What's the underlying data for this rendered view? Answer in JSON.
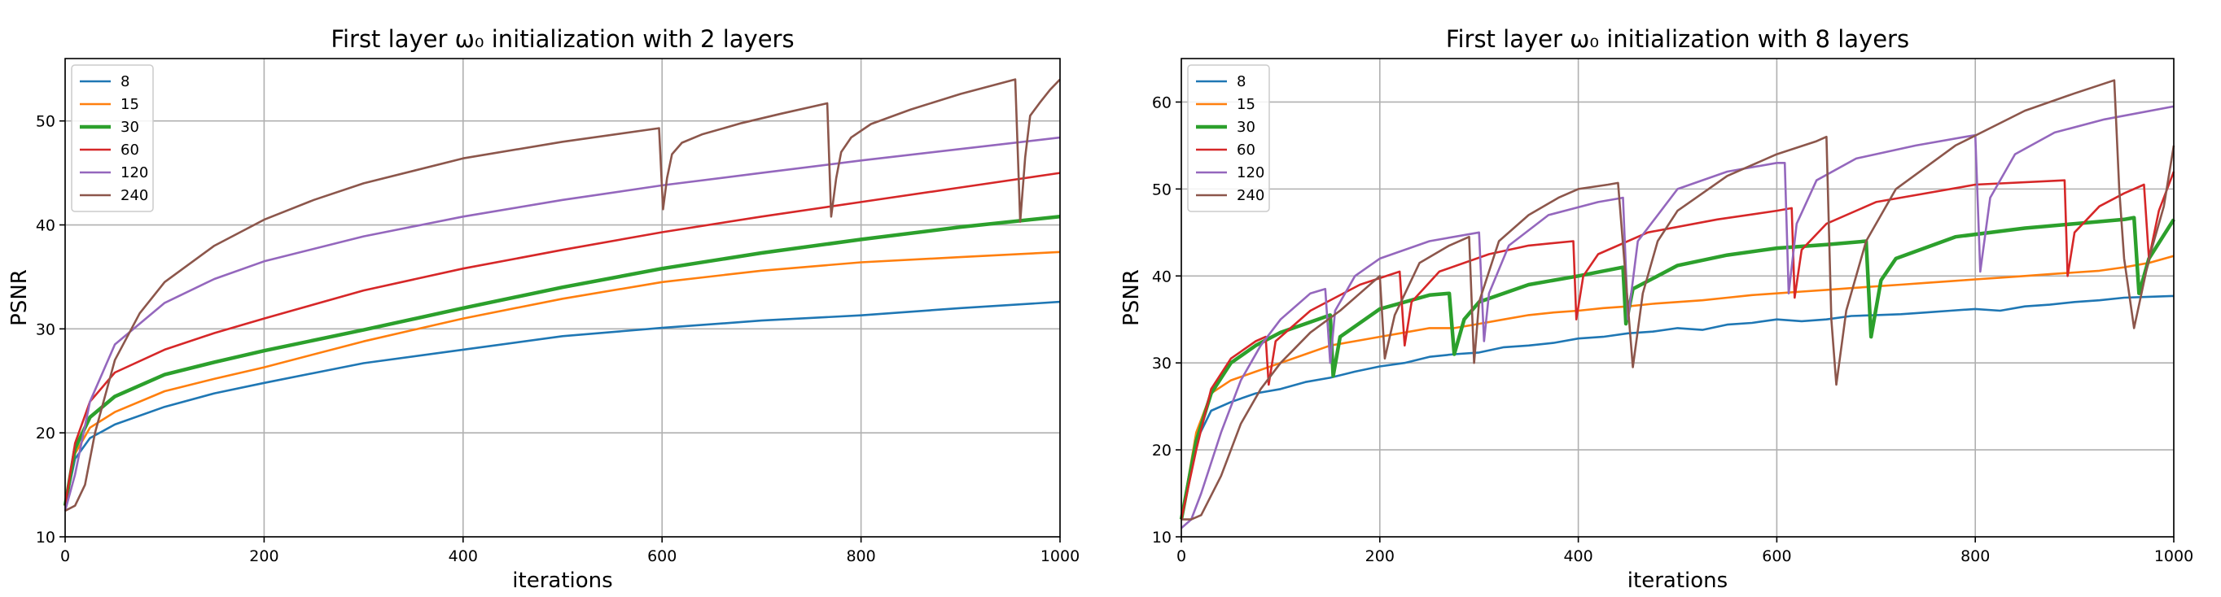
{
  "chart_data": [
    {
      "type": "line",
      "title": "First layer ω₀ initialization with 2 layers",
      "xlabel": "iterations",
      "ylabel": "PSNR",
      "xlim": [
        0,
        1000
      ],
      "ylim": [
        10,
        56
      ],
      "xticks": [
        0,
        200,
        400,
        600,
        800,
        1000
      ],
      "yticks": [
        10,
        20,
        30,
        40,
        50
      ],
      "grid": true,
      "legend": "top-left",
      "series": [
        {
          "name": "8",
          "color": "#1f77b4",
          "x": [
            0,
            10,
            25,
            50,
            100,
            150,
            200,
            300,
            400,
            500,
            600,
            700,
            800,
            900,
            1000
          ],
          "y": [
            13,
            17.5,
            19.5,
            20.8,
            22.5,
            23.8,
            24.8,
            26.7,
            28.0,
            29.3,
            30.1,
            30.8,
            31.3,
            32.0,
            32.6
          ]
        },
        {
          "name": "15",
          "color": "#ff7f0e",
          "x": [
            0,
            10,
            25,
            50,
            100,
            150,
            200,
            300,
            400,
            500,
            600,
            700,
            800,
            900,
            1000
          ],
          "y": [
            13,
            18,
            20.5,
            22.0,
            24.0,
            25.2,
            26.3,
            28.8,
            31.0,
            32.9,
            34.5,
            35.6,
            36.4,
            36.9,
            37.4
          ]
        },
        {
          "name": "30",
          "color": "#2ca02c",
          "x": [
            0,
            10,
            25,
            50,
            100,
            150,
            200,
            300,
            400,
            500,
            600,
            700,
            800,
            900,
            1000
          ],
          "y": [
            13,
            18.5,
            21.5,
            23.5,
            25.6,
            26.8,
            27.9,
            29.9,
            32.0,
            34.0,
            35.8,
            37.3,
            38.6,
            39.8,
            40.8
          ]
        },
        {
          "name": "60",
          "color": "#d62728",
          "x": [
            0,
            10,
            25,
            50,
            100,
            150,
            200,
            300,
            400,
            500,
            600,
            700,
            800,
            900,
            1000
          ],
          "y": [
            13,
            19,
            23,
            25.8,
            28.0,
            29.6,
            31.0,
            33.7,
            35.8,
            37.6,
            39.3,
            40.8,
            42.2,
            43.6,
            45.0
          ]
        },
        {
          "name": "120",
          "color": "#9467bd",
          "x": [
            0,
            10,
            25,
            50,
            100,
            150,
            200,
            300,
            400,
            500,
            600,
            700,
            800,
            900,
            1000
          ],
          "y": [
            12.5,
            16,
            23,
            28.5,
            32.5,
            34.8,
            36.5,
            38.9,
            40.8,
            42.4,
            43.8,
            45.0,
            46.2,
            47.3,
            48.4
          ]
        },
        {
          "name": "240",
          "color": "#8c564b",
          "x": [
            0,
            10,
            20,
            30,
            50,
            75,
            100,
            150,
            200,
            250,
            300,
            400,
            500,
            597,
            601,
            605,
            610,
            620,
            640,
            680,
            720,
            766,
            770,
            775,
            780,
            790,
            810,
            850,
            900,
            955,
            960,
            965,
            970,
            980,
            990,
            1000
          ],
          "y": [
            12.5,
            13,
            15,
            20,
            27,
            31.5,
            34.5,
            38.0,
            40.5,
            42.4,
            44.0,
            46.4,
            48.0,
            49.3,
            41.5,
            44.5,
            46.8,
            47.9,
            48.7,
            49.8,
            50.7,
            51.7,
            40.8,
            44.5,
            47.0,
            48.4,
            49.7,
            51.1,
            52.6,
            54.0,
            40.3,
            46.5,
            50.5,
            51.8,
            53.0,
            54.0
          ]
        }
      ]
    },
    {
      "type": "line",
      "title": "First layer ω₀ initialization with 8 layers",
      "xlabel": "iterations",
      "ylabel": "PSNR",
      "xlim": [
        0,
        1000
      ],
      "ylim": [
        10,
        65
      ],
      "xticks": [
        0,
        200,
        400,
        600,
        800,
        1000
      ],
      "yticks": [
        10,
        20,
        30,
        40,
        50,
        60
      ],
      "grid": true,
      "legend": "top-left",
      "series": [
        {
          "name": "8",
          "color": "#1f77b4",
          "x": [
            0,
            15,
            30,
            50,
            75,
            100,
            125,
            150,
            175,
            200,
            225,
            250,
            275,
            300,
            325,
            350,
            375,
            400,
            425,
            450,
            475,
            500,
            525,
            550,
            575,
            600,
            625,
            650,
            675,
            700,
            725,
            750,
            775,
            800,
            825,
            850,
            875,
            900,
            925,
            950,
            975,
            1000
          ],
          "y": [
            12,
            21,
            24.5,
            25.5,
            26.5,
            27.0,
            27.8,
            28.3,
            29.0,
            29.6,
            30.0,
            30.7,
            31.0,
            31.2,
            31.8,
            32.0,
            32.3,
            32.8,
            33.0,
            33.4,
            33.6,
            34.0,
            33.8,
            34.4,
            34.6,
            35.0,
            34.8,
            35.0,
            35.4,
            35.5,
            35.6,
            35.8,
            36.0,
            36.2,
            36.0,
            36.5,
            36.7,
            37.0,
            37.2,
            37.5,
            37.6,
            37.7
          ]
        },
        {
          "name": "15",
          "color": "#ff7f0e",
          "x": [
            0,
            15,
            30,
            50,
            75,
            100,
            125,
            150,
            175,
            200,
            225,
            250,
            275,
            300,
            325,
            350,
            375,
            400,
            425,
            450,
            475,
            500,
            525,
            550,
            575,
            600,
            625,
            650,
            675,
            700,
            725,
            750,
            775,
            800,
            825,
            850,
            875,
            900,
            925,
            950,
            975,
            1000
          ],
          "y": [
            12,
            22,
            26.5,
            28.0,
            29.0,
            30.0,
            31.0,
            32.0,
            32.5,
            33.0,
            33.5,
            34.0,
            34.0,
            34.5,
            35.0,
            35.5,
            35.8,
            36.0,
            36.3,
            36.5,
            36.8,
            37.0,
            37.2,
            37.5,
            37.8,
            38.0,
            38.2,
            38.4,
            38.6,
            38.8,
            39.0,
            39.2,
            39.4,
            39.6,
            39.8,
            40.0,
            40.2,
            40.4,
            40.6,
            41.0,
            41.5,
            42.3
          ]
        },
        {
          "name": "30",
          "color": "#2ca02c",
          "x": [
            0,
            15,
            30,
            50,
            75,
            100,
            150,
            153,
            160,
            200,
            250,
            270,
            275,
            285,
            300,
            350,
            400,
            445,
            448,
            455,
            500,
            550,
            600,
            650,
            690,
            695,
            705,
            720,
            780,
            850,
            900,
            950,
            960,
            965,
            975,
            1000
          ],
          "y": [
            12,
            21,
            26.5,
            30,
            32.0,
            33.5,
            35.5,
            28.5,
            33.0,
            36.2,
            37.8,
            38.0,
            31.0,
            35.0,
            37.0,
            39.0,
            40.0,
            41.0,
            34.5,
            38.5,
            41.2,
            42.4,
            43.2,
            43.6,
            44.0,
            33.0,
            39.5,
            42.0,
            44.5,
            45.5,
            46.0,
            46.5,
            46.7,
            38.0,
            42.0,
            46.5
          ]
        },
        {
          "name": "60",
          "color": "#d62728",
          "x": [
            0,
            15,
            30,
            50,
            75,
            85,
            88,
            95,
            130,
            180,
            220,
            225,
            232,
            260,
            310,
            350,
            395,
            398,
            405,
            420,
            470,
            540,
            600,
            615,
            618,
            625,
            650,
            700,
            800,
            890,
            893,
            900,
            925,
            950,
            970,
            975,
            985,
            1000
          ],
          "y": [
            12,
            20,
            27,
            30.5,
            32.5,
            33.0,
            27.5,
            32.5,
            36.0,
            39.0,
            40.5,
            32.0,
            37.0,
            40.5,
            42.5,
            43.5,
            44.0,
            35.0,
            40.0,
            42.5,
            45.0,
            46.5,
            47.5,
            47.8,
            37.5,
            43.0,
            46.0,
            48.5,
            50.5,
            51.0,
            40.0,
            45.0,
            48.0,
            49.5,
            50.5,
            42.0,
            47.5,
            52.0
          ]
        },
        {
          "name": "120",
          "color": "#9467bd",
          "x": [
            0,
            10,
            20,
            40,
            60,
            80,
            100,
            130,
            145,
            150,
            155,
            175,
            200,
            250,
            300,
            305,
            310,
            330,
            370,
            420,
            445,
            450,
            460,
            500,
            550,
            600,
            608,
            612,
            620,
            640,
            680,
            740,
            790,
            800,
            805,
            815,
            840,
            880,
            930,
            1000
          ],
          "y": [
            11,
            12,
            15,
            22,
            28,
            32,
            35,
            38.0,
            38.5,
            30.0,
            36.0,
            40.0,
            42.0,
            44.0,
            45.0,
            32.5,
            38.0,
            43.5,
            47.0,
            48.5,
            49.0,
            35.0,
            44.0,
            50.0,
            52.0,
            53.0,
            53.0,
            38.0,
            46.0,
            51.0,
            53.5,
            55.0,
            56.0,
            56.2,
            40.5,
            49.0,
            54.0,
            56.5,
            58.0,
            59.5
          ]
        },
        {
          "name": "240",
          "color": "#8c564b",
          "x": [
            0,
            10,
            20,
            40,
            60,
            80,
            100,
            130,
            160,
            185,
            200,
            205,
            215,
            240,
            270,
            290,
            295,
            300,
            320,
            350,
            380,
            400,
            430,
            440,
            455,
            465,
            480,
            500,
            550,
            600,
            640,
            650,
            655,
            660,
            670,
            690,
            720,
            780,
            850,
            900,
            940,
            945,
            950,
            960,
            975,
            990,
            1000
          ],
          "y": [
            12,
            12,
            12.5,
            17,
            23,
            27,
            30,
            33.5,
            36,
            38.5,
            40,
            30.5,
            35.5,
            41.5,
            43.5,
            44.5,
            30.0,
            37.0,
            44.0,
            47.0,
            49.0,
            50.0,
            50.5,
            50.7,
            29.5,
            38.0,
            44.0,
            47.5,
            51.5,
            54.0,
            55.5,
            56.0,
            35.0,
            27.5,
            36.0,
            44.0,
            50.0,
            55.0,
            59.0,
            61.0,
            62.5,
            50.0,
            42.0,
            34.0,
            42.0,
            48.0,
            55.0
          ]
        }
      ]
    }
  ]
}
